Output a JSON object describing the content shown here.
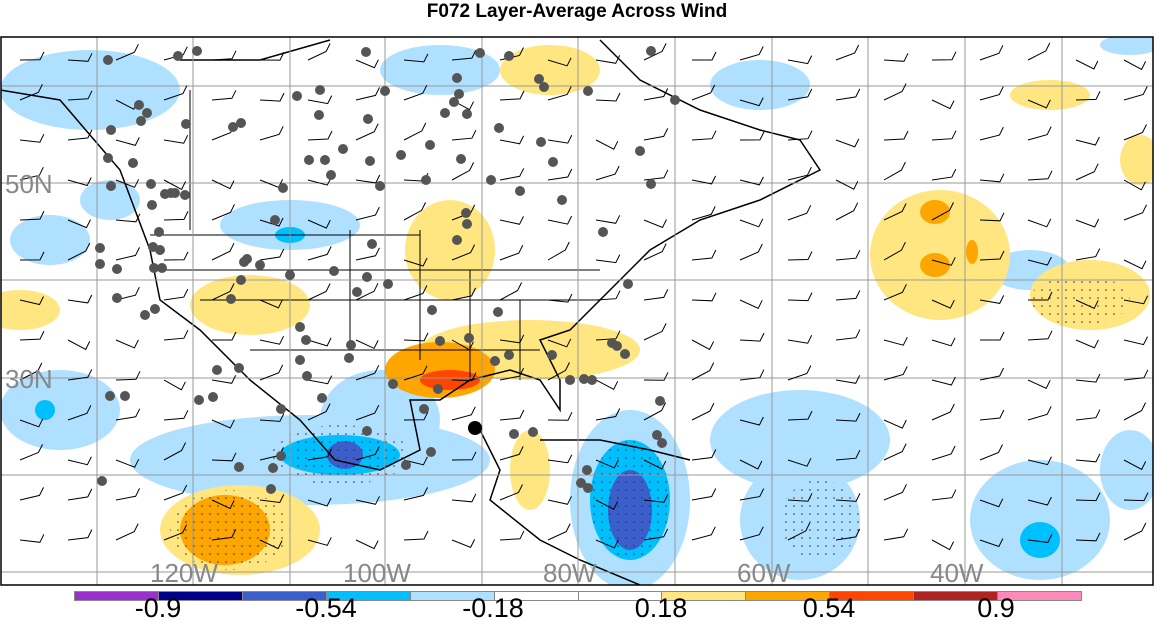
{
  "title": "F072 Layer-Average Across Wind",
  "lat_labels": [
    "50N",
    "30N"
  ],
  "lon_labels": [
    "120W",
    "100W",
    "80W",
    "60W",
    "40W"
  ],
  "colorbar": {
    "colors": [
      "#9932cc",
      "#00008b",
      "#3a5fcd",
      "#00bfff",
      "#b0e0ff",
      "#ffffff",
      "#ffffff",
      "#ffe680",
      "#ffa500",
      "#ff4500",
      "#b22222",
      "#ff88bb"
    ],
    "labels": [
      "-0.9",
      "-0.54",
      "-0.18",
      "0.18",
      "0.54",
      "0.9"
    ]
  }
}
